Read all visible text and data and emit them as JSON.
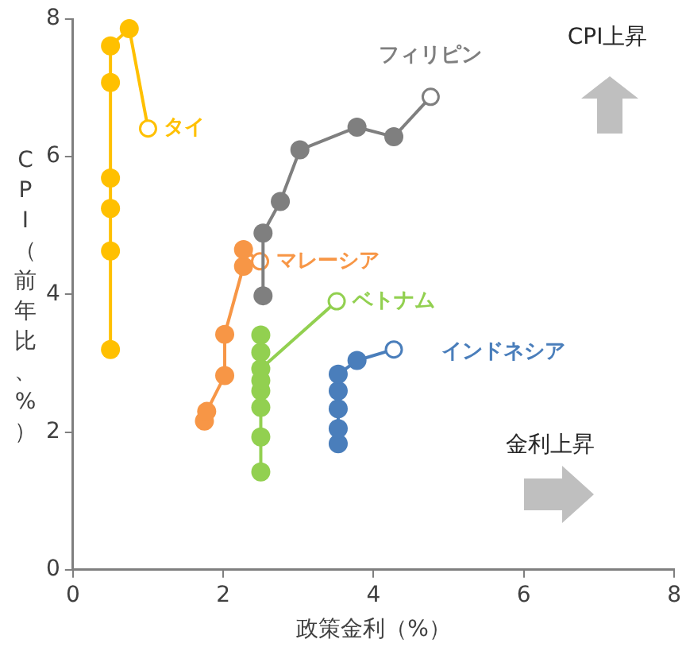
{
  "chart_data": {
    "type": "line",
    "xlabel": "政策金利（%）",
    "ylabel": "CPI（前年比、%）",
    "xlim": [
      0,
      8
    ],
    "xticks": [
      0,
      2,
      4,
      6,
      8
    ],
    "ylim": [
      0,
      8
    ],
    "yticks": [
      0,
      2,
      4,
      6,
      8
    ],
    "grid": false,
    "legend": false,
    "marker": "circle",
    "series": [
      {
        "name": "タイ",
        "color": "#ffc000",
        "x": [
          0.5,
          0.5,
          0.5,
          0.5,
          0.5,
          0.5,
          0.75,
          1.0
        ],
        "values": [
          3.2,
          4.63,
          5.25,
          5.69,
          7.08,
          7.61,
          7.86,
          6.41
        ]
      },
      {
        "name": "フィリピン",
        "color": "#7f7f7f",
        "x": [
          2.53,
          2.53,
          2.76,
          3.02,
          3.78,
          4.27,
          4.76
        ],
        "values": [
          3.98,
          4.89,
          5.35,
          6.1,
          6.43,
          6.29,
          6.87
        ]
      },
      {
        "name": "マレーシア",
        "color": "#f79646",
        "x": [
          1.75,
          1.78,
          2.02,
          2.02,
          2.27,
          2.27,
          2.49
        ],
        "values": [
          2.16,
          2.3,
          2.82,
          3.42,
          4.41,
          4.65,
          4.48
        ]
      },
      {
        "name": "ベトナム",
        "color": "#92d050",
        "x": [
          2.5,
          2.5,
          2.5,
          2.5,
          2.5,
          2.5,
          2.5,
          2.5,
          3.51
        ],
        "values": [
          1.42,
          1.93,
          2.36,
          2.6,
          2.75,
          3.16,
          3.41,
          2.92,
          3.9
        ]
      },
      {
        "name": "インドネシア",
        "color": "#4a7ebb",
        "x": [
          3.53,
          3.53,
          3.53,
          3.53,
          3.53,
          3.78,
          4.27
        ],
        "values": [
          1.83,
          2.05,
          2.34,
          2.6,
          2.84,
          3.04,
          3.2
        ]
      }
    ],
    "annotations": [
      "CPI上昇",
      "金利上昇"
    ]
  }
}
